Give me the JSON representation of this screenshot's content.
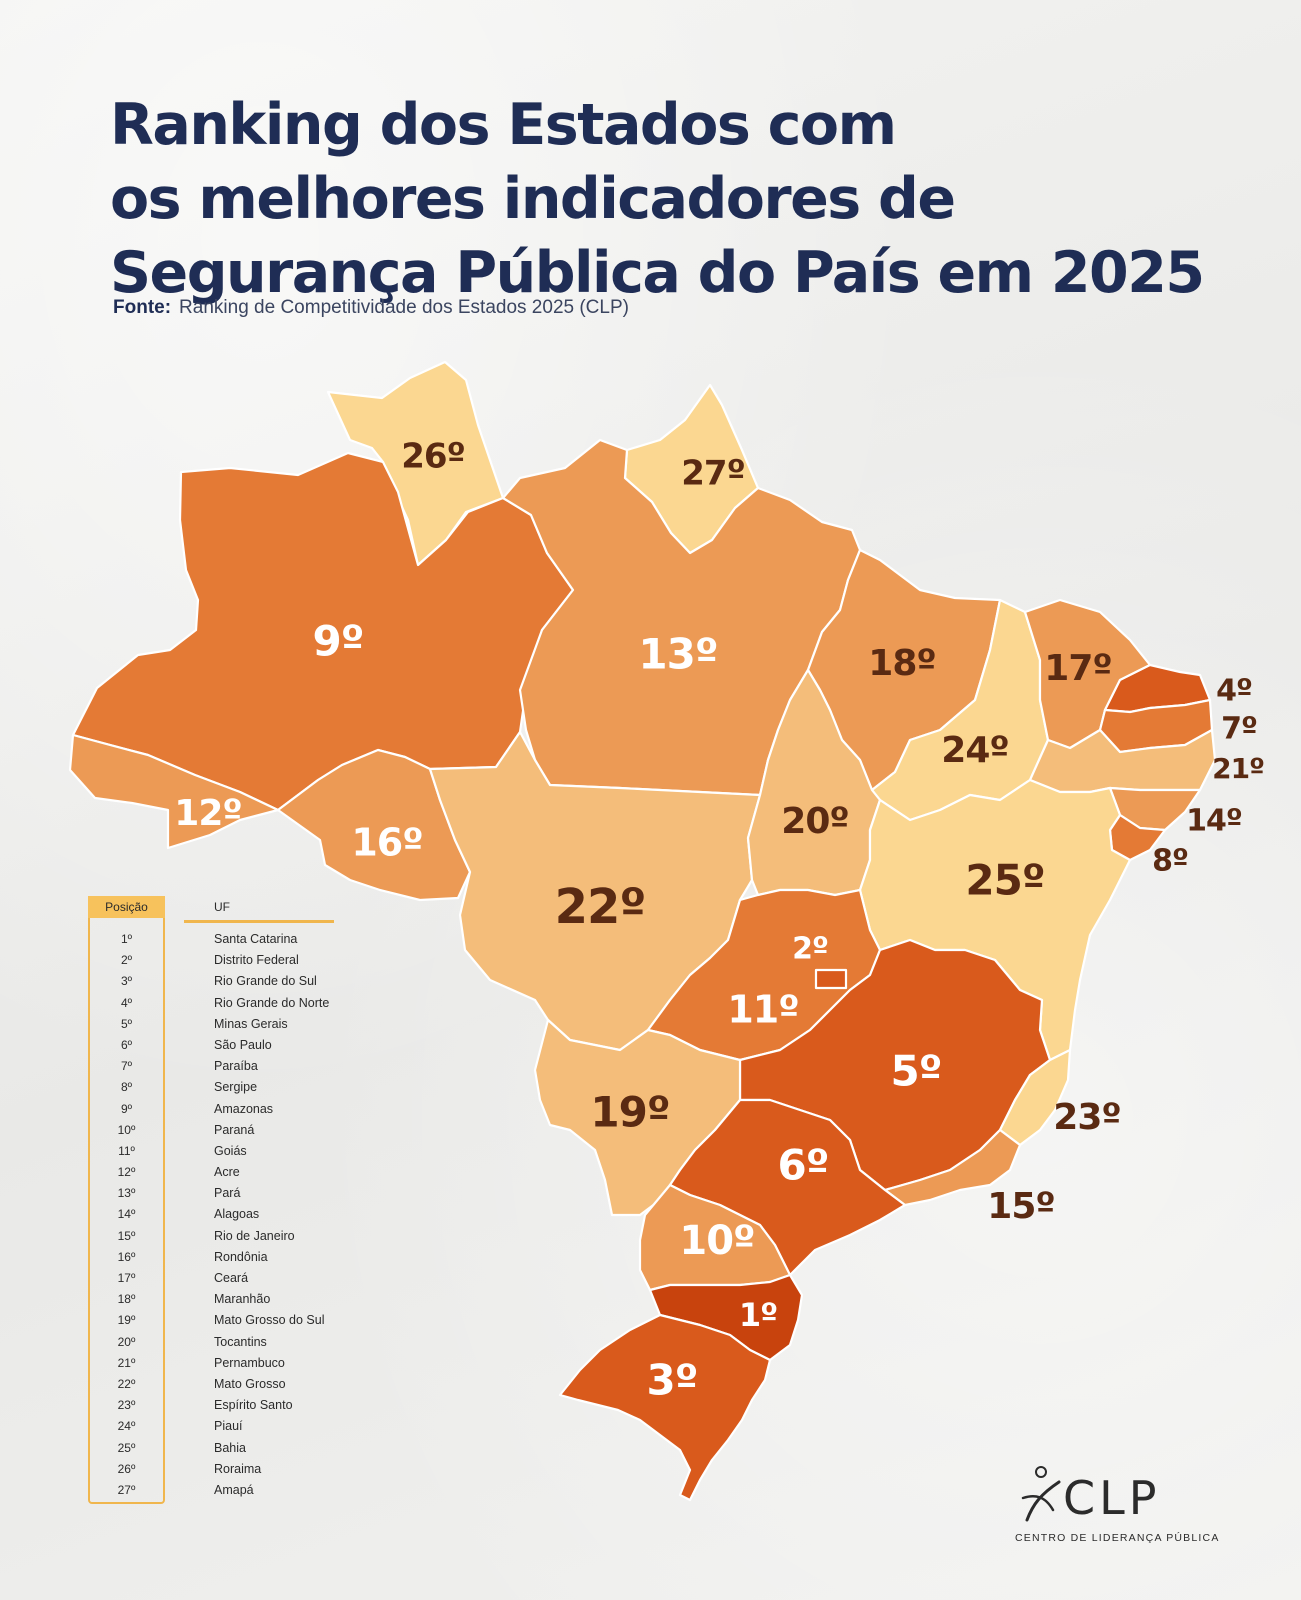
{
  "title_lines": [
    "Ranking dos Estados com",
    "os melhores indicadores de",
    "Segurança Pública do País em 2025"
  ],
  "source": {
    "label": "Fonte:",
    "text": "Ranking de Competitividade dos Estados 2025 (CLP)"
  },
  "colors": {
    "title": "#1f2d55",
    "legend_accent": "#f0b64d",
    "rank_scale": [
      "#c8430d",
      "#d95a1c",
      "#e47a35",
      "#ec9a55",
      "#f4bd7a",
      "#fbd791"
    ],
    "label_dark": "#5a2a12",
    "label_light": "#ffffff"
  },
  "map_labels": {
    "santa_catarina": "1º",
    "distrito_federal": "2º",
    "rio_grande_do_sul": "3º",
    "rio_grande_do_norte": "4º",
    "minas_gerais": "5º",
    "sao_paulo": "6º",
    "paraiba": "7º",
    "sergipe": "8º",
    "amazonas": "9º",
    "parana": "10º",
    "goias": "11º",
    "acre": "12º",
    "para": "13º",
    "alagoas": "14º",
    "rio_de_janeiro": "15º",
    "rondonia": "16º",
    "ceara": "17º",
    "maranhao": "18º",
    "mato_grosso_do_sul": "19º",
    "tocantins": "20º",
    "pernambuco": "21º",
    "mato_grosso": "22º",
    "espirito_santo": "23º",
    "piaui": "24º",
    "bahia": "25º",
    "roraima": "26º",
    "amapa": "27º"
  },
  "legend": {
    "position_header": "Posição",
    "uf_header": "UF",
    "rows": [
      {
        "pos": "1º",
        "uf": "Santa Catarina"
      },
      {
        "pos": "2º",
        "uf": "Distrito Federal"
      },
      {
        "pos": "3º",
        "uf": "Rio Grande do Sul"
      },
      {
        "pos": "4º",
        "uf": "Rio Grande do Norte"
      },
      {
        "pos": "5º",
        "uf": "Minas Gerais"
      },
      {
        "pos": "6º",
        "uf": "São Paulo"
      },
      {
        "pos": "7º",
        "uf": "Paraíba"
      },
      {
        "pos": "8º",
        "uf": "Sergipe"
      },
      {
        "pos": "9º",
        "uf": "Amazonas"
      },
      {
        "pos": "10º",
        "uf": "Paraná"
      },
      {
        "pos": "11º",
        "uf": "Goiás"
      },
      {
        "pos": "12º",
        "uf": "Acre"
      },
      {
        "pos": "13º",
        "uf": "Pará"
      },
      {
        "pos": "14º",
        "uf": "Alagoas"
      },
      {
        "pos": "15º",
        "uf": "Rio de Janeiro"
      },
      {
        "pos": "16º",
        "uf": "Rondônia"
      },
      {
        "pos": "17º",
        "uf": "Ceará"
      },
      {
        "pos": "18º",
        "uf": "Maranhão"
      },
      {
        "pos": "19º",
        "uf": "Mato Grosso do Sul"
      },
      {
        "pos": "20º",
        "uf": "Tocantins"
      },
      {
        "pos": "21º",
        "uf": "Pernambuco"
      },
      {
        "pos": "22º",
        "uf": "Mato Grosso"
      },
      {
        "pos": "23º",
        "uf": "Espírito Santo"
      },
      {
        "pos": "24º",
        "uf": "Piauí"
      },
      {
        "pos": "25º",
        "uf": "Bahia"
      },
      {
        "pos": "26º",
        "uf": "Roraima"
      },
      {
        "pos": "27º",
        "uf": "Amapá"
      }
    ]
  },
  "logo": {
    "text": "CLP",
    "subtitle": "CENTRO DE LIDERANÇA PÚBLICA"
  }
}
